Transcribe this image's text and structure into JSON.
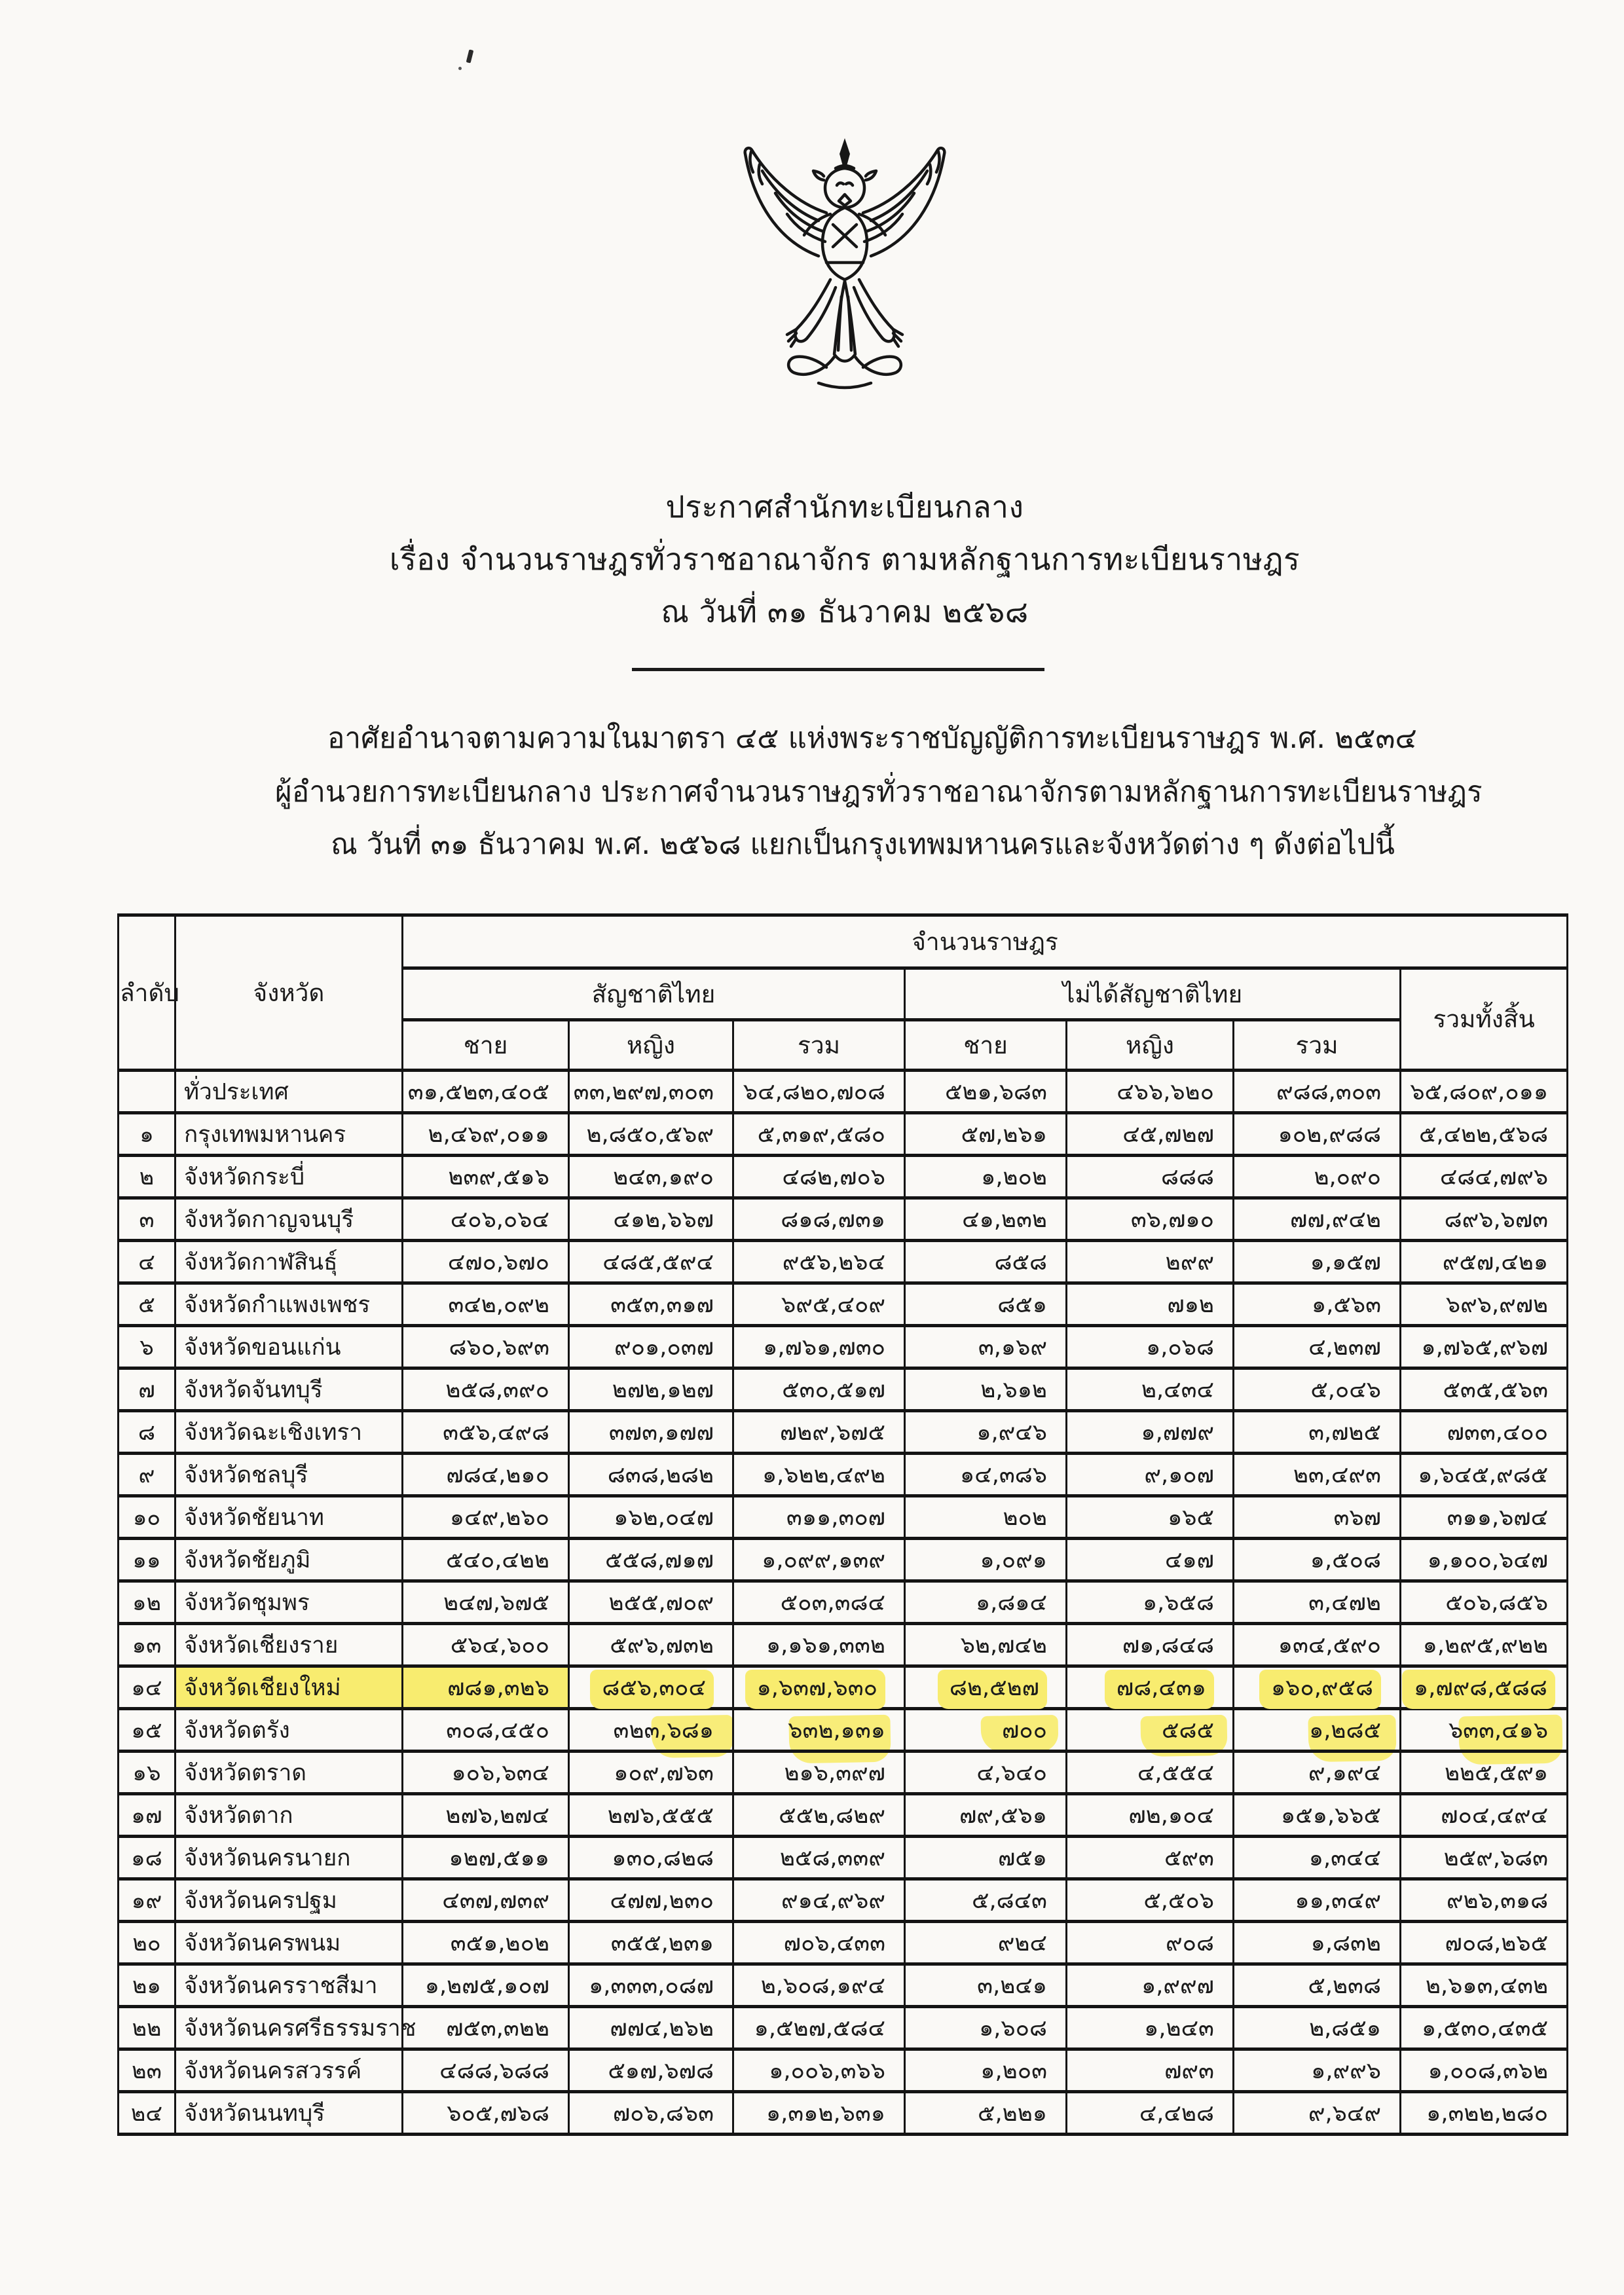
{
  "document": {
    "agency_emblem": "garuda-emblem",
    "title_lines": [
      "ประกาศสำนักทะเบียนกลาง",
      "เรื่อง  จำนวนราษฎรทั่วราชอาณาจักร  ตามหลักฐานการทะเบียนราษฎร",
      "ณ  วันที่ ๓๑ ธันวาคม ๒๕๖๘"
    ],
    "body_lines": [
      "อาศัยอำนาจตามความในมาตรา ๔๕  แห่งพระราชบัญญัติการทะเบียนราษฎร พ.ศ. ๒๕๓๔",
      "ผู้อำนวยการทะเบียนกลาง ประกาศจำนวนราษฎรทั่วราชอาณาจักรตามหลักฐานการทะเบียนราษฎร",
      "ณ  วันที่ ๓๑ ธันวาคม พ.ศ. ๒๕๖๘ แยกเป็นกรุงเทพมหานครและจังหวัดต่าง ๆ  ดังต่อไปนี้"
    ]
  },
  "colors": {
    "paper": "#faf9f6",
    "ink": "#1b1b1b",
    "table_line": "#141414",
    "highlight": "#f8ec6f"
  },
  "table": {
    "headers": {
      "no": "ลำดับ",
      "province": "จังหวัด",
      "population": "จำนวนราษฎร",
      "thai": "สัญชาติไทย",
      "non_thai": "ไม่ได้สัญชาติไทย",
      "grand_total": "รวมทั้งสิ้น",
      "male": "ชาย",
      "female": "หญิง",
      "total": "รวม"
    },
    "highlight_row_index": 14,
    "rows": [
      {
        "no": "",
        "province": "ทั่วประเทศ",
        "cells": [
          "๓๑,๕๒๓,๔๐๕",
          "๓๓,๒๙๗,๓๐๓",
          "๖๔,๘๒๐,๗๐๘",
          "๕๒๑,๖๘๓",
          "๔๖๖,๖๒๐",
          "๙๘๘,๓๐๓",
          "๖๕,๘๐๙,๐๑๑"
        ]
      },
      {
        "no": "๑",
        "province": "กรุงเทพมหานคร",
        "cells": [
          "๒,๔๖๙,๐๑๑",
          "๒,๘๕๐,๕๖๙",
          "๕,๓๑๙,๕๘๐",
          "๕๗,๒๖๑",
          "๔๕,๗๒๗",
          "๑๐๒,๙๘๘",
          "๕,๔๒๒,๕๖๘"
        ]
      },
      {
        "no": "๒",
        "province": "จังหวัดกระบี่",
        "cells": [
          "๒๓๙,๕๑๖",
          "๒๔๓,๑๙๐",
          "๔๘๒,๗๐๖",
          "๑,๒๐๒",
          "๘๘๘",
          "๒,๐๙๐",
          "๔๘๔,๗๙๖"
        ]
      },
      {
        "no": "๓",
        "province": "จังหวัดกาญจนบุรี",
        "cells": [
          "๔๐๖,๐๖๔",
          "๔๑๒,๖๖๗",
          "๘๑๘,๗๓๑",
          "๔๑,๒๓๒",
          "๓๖,๗๑๐",
          "๗๗,๙๔๒",
          "๘๙๖,๖๗๓"
        ]
      },
      {
        "no": "๔",
        "province": "จังหวัดกาฬสินธุ์",
        "cells": [
          "๔๗๐,๖๗๐",
          "๔๘๕,๕๙๔",
          "๙๕๖,๒๖๔",
          "๘๕๘",
          "๒๙๙",
          "๑,๑๕๗",
          "๙๕๗,๔๒๑"
        ]
      },
      {
        "no": "๕",
        "province": "จังหวัดกำแพงเพชร",
        "cells": [
          "๓๔๒,๐๙๒",
          "๓๕๓,๓๑๗",
          "๖๙๕,๔๐๙",
          "๘๕๑",
          "๗๑๒",
          "๑,๕๖๓",
          "๖๙๖,๙๗๒"
        ]
      },
      {
        "no": "๖",
        "province": "จังหวัดขอนแก่น",
        "cells": [
          "๘๖๐,๖๙๓",
          "๙๐๑,๐๓๗",
          "๑,๗๖๑,๗๓๐",
          "๓,๑๖๙",
          "๑,๐๖๘",
          "๔,๒๓๗",
          "๑,๗๖๕,๙๖๗"
        ]
      },
      {
        "no": "๗",
        "province": "จังหวัดจันทบุรี",
        "cells": [
          "๒๕๘,๓๙๐",
          "๒๗๒,๑๒๗",
          "๕๓๐,๕๑๗",
          "๒,๖๑๒",
          "๒,๔๓๔",
          "๕,๐๔๖",
          "๕๓๕,๕๖๓"
        ]
      },
      {
        "no": "๘",
        "province": "จังหวัดฉะเชิงเทรา",
        "cells": [
          "๓๕๖,๔๙๘",
          "๓๗๓,๑๗๗",
          "๗๒๙,๖๗๕",
          "๑,๙๔๖",
          "๑,๗๗๙",
          "๓,๗๒๕",
          "๗๓๓,๔๐๐"
        ]
      },
      {
        "no": "๙",
        "province": "จังหวัดชลบุรี",
        "cells": [
          "๗๘๔,๒๑๐",
          "๘๓๘,๒๘๒",
          "๑,๖๒๒,๔๙๒",
          "๑๔,๓๘๖",
          "๙,๑๐๗",
          "๒๓,๔๙๓",
          "๑,๖๔๕,๙๘๕"
        ]
      },
      {
        "no": "๑๐",
        "province": "จังหวัดชัยนาท",
        "cells": [
          "๑๔๙,๒๖๐",
          "๑๖๒,๐๔๗",
          "๓๑๑,๓๐๗",
          "๒๐๒",
          "๑๖๕",
          "๓๖๗",
          "๓๑๑,๖๗๔"
        ]
      },
      {
        "no": "๑๑",
        "province": "จังหวัดชัยภูมิ",
        "cells": [
          "๕๔๐,๔๒๒",
          "๕๕๘,๗๑๗",
          "๑,๐๙๙,๑๓๙",
          "๑,๐๙๑",
          "๔๑๗",
          "๑,๕๐๘",
          "๑,๑๐๐,๖๔๗"
        ]
      },
      {
        "no": "๑๒",
        "province": "จังหวัดชุมพร",
        "cells": [
          "๒๔๗,๖๗๕",
          "๒๕๕,๗๐๙",
          "๕๐๓,๓๘๔",
          "๑,๘๑๔",
          "๑,๖๕๘",
          "๓,๔๗๒",
          "๕๐๖,๘๕๖"
        ]
      },
      {
        "no": "๑๓",
        "province": "จังหวัดเชียงราย",
        "cells": [
          "๕๖๔,๖๐๐",
          "๕๙๖,๗๓๒",
          "๑,๑๖๑,๓๓๒",
          "๖๒,๗๔๒",
          "๗๑,๘๔๘",
          "๑๓๔,๕๙๐",
          "๑,๒๙๕,๙๒๒"
        ]
      },
      {
        "no": "๑๔",
        "province": "จังหวัดเชียงใหม่",
        "cells": [
          "๗๘๑,๓๒๖",
          "๘๕๖,๓๐๔",
          "๑,๖๓๗,๖๓๐",
          "๘๒,๕๒๗",
          "๗๘,๔๓๑",
          "๑๖๐,๙๕๘",
          "๑,๗๙๘,๕๘๘"
        ]
      },
      {
        "no": "๑๕",
        "province": "จังหวัดตรัง",
        "cells": [
          "๓๐๘,๔๕๐",
          "๓๒๓,๖๘๑",
          "๖๓๒,๑๓๑",
          "๗๐๐",
          "๕๘๕",
          "๑,๒๘๕",
          "๖๓๓,๔๑๖"
        ]
      },
      {
        "no": "๑๖",
        "province": "จังหวัดตราด",
        "cells": [
          "๑๐๖,๖๓๔",
          "๑๐๙,๗๖๓",
          "๒๑๖,๓๙๗",
          "๔,๖๔๐",
          "๔,๕๕๔",
          "๙,๑๙๔",
          "๒๒๕,๕๙๑"
        ]
      },
      {
        "no": "๑๗",
        "province": "จังหวัดตาก",
        "cells": [
          "๒๗๖,๒๗๔",
          "๒๗๖,๕๕๕",
          "๕๕๒,๘๒๙",
          "๗๙,๕๖๑",
          "๗๒,๑๐๔",
          "๑๕๑,๖๖๕",
          "๗๐๔,๔๙๔"
        ]
      },
      {
        "no": "๑๘",
        "province": "จังหวัดนครนายก",
        "cells": [
          "๑๒๗,๕๑๑",
          "๑๓๐,๘๒๘",
          "๒๕๘,๓๓๙",
          "๗๕๑",
          "๕๙๓",
          "๑,๓๔๔",
          "๒๕๙,๖๘๓"
        ]
      },
      {
        "no": "๑๙",
        "province": "จังหวัดนครปฐม",
        "cells": [
          "๔๓๗,๗๓๙",
          "๔๗๗,๒๓๐",
          "๙๑๔,๙๖๙",
          "๕,๘๔๓",
          "๕,๕๐๖",
          "๑๑,๓๔๙",
          "๙๒๖,๓๑๘"
        ]
      },
      {
        "no": "๒๐",
        "province": "จังหวัดนครพนม",
        "cells": [
          "๓๕๑,๒๐๒",
          "๓๕๕,๒๓๑",
          "๗๐๖,๔๓๓",
          "๙๒๔",
          "๙๐๘",
          "๑,๘๓๒",
          "๗๐๘,๒๖๕"
        ]
      },
      {
        "no": "๒๑",
        "province": "จังหวัดนครราชสีมา",
        "cells": [
          "๑,๒๗๕,๑๐๗",
          "๑,๓๓๓,๐๘๗",
          "๒,๖๐๘,๑๙๔",
          "๓,๒๔๑",
          "๑,๙๙๗",
          "๕,๒๓๘",
          "๒,๖๑๓,๔๓๒"
        ]
      },
      {
        "no": "๒๒",
        "province": "จังหวัดนครศรีธรรมราช",
        "cells": [
          "๗๕๓,๓๒๒",
          "๗๗๔,๒๖๒",
          "๑,๕๒๗,๕๘๔",
          "๑,๖๐๘",
          "๑,๒๔๓",
          "๒,๘๕๑",
          "๑,๕๓๐,๔๓๕"
        ]
      },
      {
        "no": "๒๓",
        "province": "จังหวัดนครสวรรค์",
        "cells": [
          "๔๘๘,๖๘๘",
          "๕๑๗,๖๗๘",
          "๑,๐๐๖,๓๖๖",
          "๑,๒๐๓",
          "๗๙๓",
          "๑,๙๙๖",
          "๑,๐๐๘,๓๖๒"
        ]
      },
      {
        "no": "๒๔",
        "province": "จังหวัดนนทบุรี",
        "cells": [
          "๖๐๕,๗๖๘",
          "๗๐๖,๘๖๓",
          "๑,๓๑๒,๖๓๑",
          "๕,๒๒๑",
          "๔,๔๒๘",
          "๙,๖๔๙",
          "๑,๓๒๒,๒๘๐"
        ]
      }
    ]
  }
}
